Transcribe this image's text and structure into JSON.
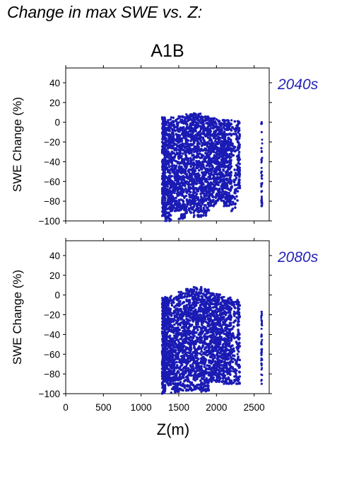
{
  "title": "Change in max SWE vs. Z:",
  "chart_data": [
    {
      "type": "scatter",
      "scenario": "A1B",
      "period_label": "2040s",
      "xlabel": "",
      "ylabel": "SWE Change (%)",
      "xlim": [
        0,
        2700
      ],
      "ylim": [
        -100,
        55
      ],
      "x_ticks": [
        0,
        500,
        1000,
        1500,
        2000,
        2500
      ],
      "y_ticks": [
        -100,
        -80,
        -60,
        -40,
        -20,
        0,
        20,
        40
      ],
      "point_color": "#1a1ab4",
      "series": [
        {
          "points": [
            [
              1280,
              5
            ],
            [
              1280,
              -20
            ],
            [
              1280,
              -45
            ],
            [
              1280,
              -70
            ],
            [
              1280,
              -95
            ],
            [
              1320,
              3
            ],
            [
              1320,
              -30
            ],
            [
              1320,
              -60
            ],
            [
              1320,
              -88
            ],
            [
              1320,
              -100
            ],
            [
              1400,
              5
            ],
            [
              1400,
              -15
            ],
            [
              1400,
              -40
            ],
            [
              1400,
              -65
            ],
            [
              1400,
              -90
            ],
            [
              1500,
              6
            ],
            [
              1500,
              -25
            ],
            [
              1500,
              -55
            ],
            [
              1500,
              -80
            ],
            [
              1500,
              -98
            ],
            [
              1600,
              8
            ],
            [
              1600,
              -10
            ],
            [
              1600,
              -35
            ],
            [
              1600,
              -62
            ],
            [
              1600,
              -92
            ],
            [
              1700,
              9
            ],
            [
              1700,
              -20
            ],
            [
              1700,
              -50
            ],
            [
              1700,
              -75
            ],
            [
              1700,
              -96
            ],
            [
              1800,
              6
            ],
            [
              1800,
              -15
            ],
            [
              1800,
              -45
            ],
            [
              1800,
              -70
            ],
            [
              1800,
              -95
            ],
            [
              1900,
              4
            ],
            [
              1900,
              -30
            ],
            [
              1900,
              -58
            ],
            [
              1900,
              -85
            ],
            [
              2000,
              3
            ],
            [
              2000,
              -20
            ],
            [
              2000,
              -50
            ],
            [
              2000,
              -80
            ],
            [
              2100,
              2
            ],
            [
              2100,
              -25
            ],
            [
              2100,
              -55
            ],
            [
              2100,
              -85
            ],
            [
              2200,
              2
            ],
            [
              2200,
              -30
            ],
            [
              2200,
              -60
            ],
            [
              2200,
              -90
            ],
            [
              2280,
              1
            ],
            [
              2280,
              -20
            ],
            [
              2280,
              -45
            ],
            [
              2280,
              -70
            ],
            [
              2600,
              0
            ],
            [
              2600,
              -10
            ],
            [
              2600,
              -30
            ],
            [
              2600,
              -50
            ],
            [
              2600,
              -70
            ],
            [
              2600,
              -85
            ]
          ]
        }
      ]
    },
    {
      "type": "scatter",
      "scenario": "",
      "period_label": "2080s",
      "xlabel": "Z(m)",
      "ylabel": "SWE Change (%)",
      "xlim": [
        0,
        2700
      ],
      "ylim": [
        -100,
        55
      ],
      "x_ticks": [
        0,
        500,
        1000,
        1500,
        2000,
        2500
      ],
      "y_ticks": [
        -100,
        -80,
        -60,
        -40,
        -20,
        0,
        20,
        40
      ],
      "point_color": "#1a1ab4",
      "series": [
        {
          "points": [
            [
              1280,
              -3
            ],
            [
              1280,
              -30
            ],
            [
              1280,
              -60
            ],
            [
              1280,
              -85
            ],
            [
              1280,
              -100
            ],
            [
              1320,
              -2
            ],
            [
              1320,
              -35
            ],
            [
              1320,
              -65
            ],
            [
              1320,
              -92
            ],
            [
              1400,
              -1
            ],
            [
              1400,
              -25
            ],
            [
              1400,
              -55
            ],
            [
              1400,
              -80
            ],
            [
              1400,
              -99
            ],
            [
              1500,
              3
            ],
            [
              1500,
              -20
            ],
            [
              1500,
              -50
            ],
            [
              1500,
              -78
            ],
            [
              1500,
              -98
            ],
            [
              1600,
              6
            ],
            [
              1600,
              -15
            ],
            [
              1600,
              -45
            ],
            [
              1600,
              -72
            ],
            [
              1600,
              -97
            ],
            [
              1700,
              8
            ],
            [
              1700,
              -20
            ],
            [
              1700,
              -50
            ],
            [
              1700,
              -75
            ],
            [
              1700,
              -96
            ],
            [
              1800,
              6
            ],
            [
              1800,
              -25
            ],
            [
              1800,
              -55
            ],
            [
              1800,
              -82
            ],
            [
              1800,
              -98
            ],
            [
              1900,
              3
            ],
            [
              1900,
              -30
            ],
            [
              1900,
              -60
            ],
            [
              1900,
              -88
            ],
            [
              2000,
              1
            ],
            [
              2000,
              -25
            ],
            [
              2000,
              -55
            ],
            [
              2000,
              -88
            ],
            [
              2100,
              -2
            ],
            [
              2100,
              -30
            ],
            [
              2100,
              -60
            ],
            [
              2100,
              -90
            ],
            [
              2200,
              -5
            ],
            [
              2200,
              -35
            ],
            [
              2200,
              -65
            ],
            [
              2200,
              -90
            ],
            [
              2280,
              -5
            ],
            [
              2280,
              -30
            ],
            [
              2280,
              -60
            ],
            [
              2280,
              -90
            ],
            [
              2600,
              -17
            ],
            [
              2600,
              -30
            ],
            [
              2600,
              -50
            ],
            [
              2600,
              -70
            ],
            [
              2600,
              -90
            ]
          ]
        }
      ]
    }
  ]
}
